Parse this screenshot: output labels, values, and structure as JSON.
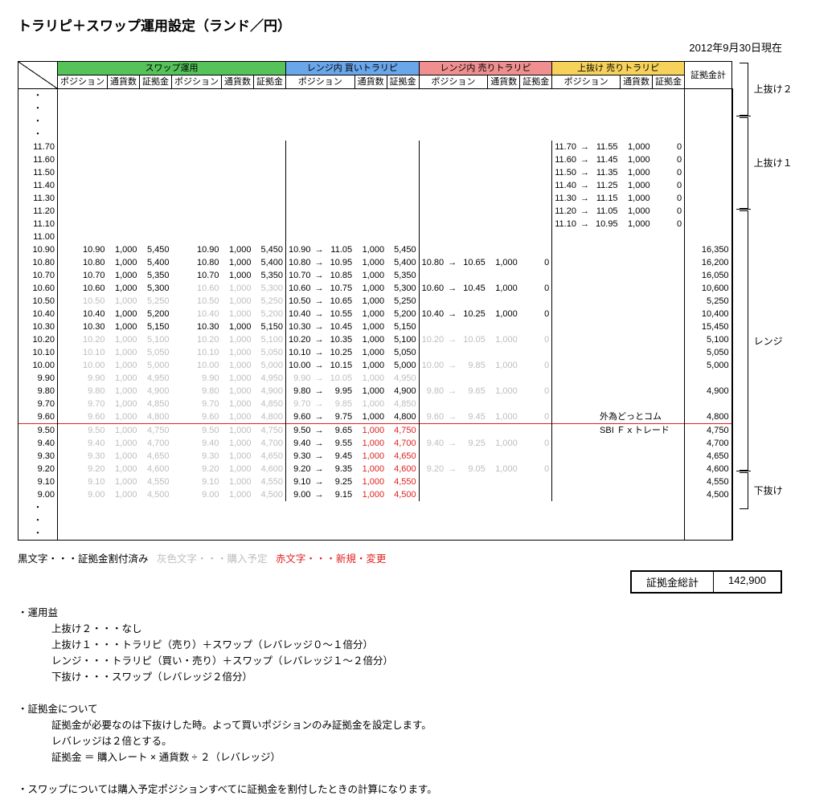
{
  "title": "トラリピ＋スワップ運用設定（ランド／円）",
  "date": "2012年9月30日現在",
  "groups": {
    "swap": {
      "title": "スワップ運用",
      "subs": [
        "ポジション",
        "通貨数",
        "証拠金",
        "ポジション",
        "通貨数",
        "証拠金"
      ]
    },
    "buy": {
      "title": "レンジ内 買いトラリピ",
      "subs": [
        "ポジション",
        "通貨数",
        "証拠金"
      ]
    },
    "sell": {
      "title": "レンジ内 売りトラリピ",
      "subs": [
        "ポジション",
        "通貨数",
        "証拠金"
      ]
    },
    "upper": {
      "title": "上抜け 売りトラリピ",
      "subs": [
        "ポジション",
        "通貨数",
        "証拠金"
      ]
    },
    "total": "証拠金計"
  },
  "note1": "外為どっとコム",
  "note2": "SBI Ｆｘトレード",
  "legend": {
    "black": "黒文字・・・証拠金割付済み",
    "gray": "灰色文字・・・購入予定",
    "red": "赤文字・・・新規・変更"
  },
  "grand": {
    "label": "証拠金総計",
    "value": "142,900"
  },
  "side": {
    "u2": "上抜け２",
    "u1": "上抜け１",
    "rng": "レンジ",
    "dn": "下抜け"
  },
  "notes": {
    "h1": "・運用益",
    "l1": "上抜け２・・・なし",
    "l2": "上抜け１・・・トラリピ（売り）＋スワップ（レバレッジ０～１倍分）",
    "l3": "レンジ・・・トラリピ（買い・売り）＋スワップ（レバレッジ１～２倍分）",
    "l4": "下抜け・・・スワップ（レバレッジ２倍分）",
    "h2": "・証拠金について",
    "l5": "証拠金が必要なのは下抜けした時。よって買いポジションのみ証拠金を設定します。",
    "l6": "レバレッジは２倍とする。",
    "l7": "証拠金 ＝ 購入レート × 通貨数 ÷ ２（レバレッジ）",
    "h3": "・スワップについては購入予定ポジションすべてに証拠金を割付したときの計算になります。"
  },
  "rows": [
    {
      "lab": "11.70",
      "u": [
        "11.70",
        "11.55",
        "1,000",
        "0"
      ]
    },
    {
      "lab": "11.60",
      "u": [
        "11.60",
        "11.45",
        "1,000",
        "0"
      ]
    },
    {
      "lab": "11.50",
      "u": [
        "11.50",
        "11.35",
        "1,000",
        "0"
      ]
    },
    {
      "lab": "11.40",
      "u": [
        "11.40",
        "11.25",
        "1,000",
        "0"
      ]
    },
    {
      "lab": "11.30",
      "u": [
        "11.30",
        "11.15",
        "1,000",
        "0"
      ]
    },
    {
      "lab": "11.20",
      "u": [
        "11.20",
        "11.05",
        "1,000",
        "0"
      ]
    },
    {
      "lab": "11.10",
      "u": [
        "11.10",
        "10.95",
        "1,000",
        "0"
      ]
    },
    {
      "lab": "11.00"
    },
    {
      "lab": "10.90",
      "s1": [
        "10.90",
        "1,000",
        "5,450"
      ],
      "s2": [
        "10.90",
        "1,000",
        "5,450"
      ],
      "b": [
        "10.90",
        "11.05",
        "1,000",
        "5,450"
      ],
      "t": "16,350"
    },
    {
      "lab": "10.80",
      "s1": [
        "10.80",
        "1,000",
        "5,400"
      ],
      "s2": [
        "10.80",
        "1,000",
        "5,400"
      ],
      "b": [
        "10.80",
        "10.95",
        "1,000",
        "5,400"
      ],
      "r": [
        "10.80",
        "10.65",
        "1,000",
        "0"
      ],
      "t": "16,200"
    },
    {
      "lab": "10.70",
      "s1": [
        "10.70",
        "1,000",
        "5,350"
      ],
      "s2": [
        "10.70",
        "1,000",
        "5,350"
      ],
      "b": [
        "10.70",
        "10.85",
        "1,000",
        "5,350"
      ],
      "t": "16,050"
    },
    {
      "lab": "10.60",
      "s1": [
        "10.60",
        "1,000",
        "5,300"
      ],
      "s2g": [
        "10.60",
        "1,000",
        "5,300"
      ],
      "b": [
        "10.60",
        "10.75",
        "1,000",
        "5,300"
      ],
      "r": [
        "10.60",
        "10.45",
        "1,000",
        "0"
      ],
      "t": "10,600"
    },
    {
      "lab": "10.50",
      "s1g": [
        "10.50",
        "1,000",
        "5,250"
      ],
      "s2g": [
        "10.50",
        "1,000",
        "5,250"
      ],
      "b": [
        "10.50",
        "10.65",
        "1,000",
        "5,250"
      ],
      "t": "5,250"
    },
    {
      "lab": "10.40",
      "s1": [
        "10.40",
        "1,000",
        "5,200"
      ],
      "s2g": [
        "10.40",
        "1,000",
        "5,200"
      ],
      "b": [
        "10.40",
        "10.55",
        "1,000",
        "5,200"
      ],
      "r": [
        "10.40",
        "10.25",
        "1,000",
        "0"
      ],
      "t": "10,400"
    },
    {
      "lab": "10.30",
      "s1": [
        "10.30",
        "1,000",
        "5,150"
      ],
      "s2": [
        "10.30",
        "1,000",
        "5,150"
      ],
      "b": [
        "10.30",
        "10.45",
        "1,000",
        "5,150"
      ],
      "t": "15,450"
    },
    {
      "lab": "10.20",
      "s1g": [
        "10.20",
        "1,000",
        "5,100"
      ],
      "s2g": [
        "10.20",
        "1,000",
        "5,100"
      ],
      "b": [
        "10.20",
        "10.35",
        "1,000",
        "5,100"
      ],
      "rg": [
        "10.20",
        "10.05",
        "1,000",
        "0"
      ],
      "t": "5,100"
    },
    {
      "lab": "10.10",
      "s1g": [
        "10.10",
        "1,000",
        "5,050"
      ],
      "s2g": [
        "10.10",
        "1,000",
        "5,050"
      ],
      "b": [
        "10.10",
        "10.25",
        "1,000",
        "5,050"
      ],
      "t": "5,050"
    },
    {
      "lab": "10.00",
      "s1g": [
        "10.00",
        "1,000",
        "5,000"
      ],
      "s2g": [
        "10.00",
        "1,000",
        "5,000"
      ],
      "b": [
        "10.00",
        "10.15",
        "1,000",
        "5,000"
      ],
      "rg": [
        "10.00",
        "9.85",
        "1,000",
        "0"
      ],
      "t": "5,000"
    },
    {
      "lab": "9.90",
      "s1g": [
        "9.90",
        "1,000",
        "4,950"
      ],
      "s2g": [
        "9.90",
        "1,000",
        "4,950"
      ],
      "bg": [
        "9.90",
        "10.05",
        "1,000",
        "4,950"
      ]
    },
    {
      "lab": "9.80",
      "s1g": [
        "9.80",
        "1,000",
        "4,900"
      ],
      "s2g": [
        "9.80",
        "1,000",
        "4,900"
      ],
      "b": [
        "9.80",
        "9.95",
        "1,000",
        "4,900"
      ],
      "rg": [
        "9.80",
        "9.65",
        "1,000",
        "0"
      ],
      "t": "4,900"
    },
    {
      "lab": "9.70",
      "s1g": [
        "9.70",
        "1,000",
        "4,850"
      ],
      "s2g": [
        "9.70",
        "1,000",
        "4,850"
      ],
      "bg": [
        "9.70",
        "9.85",
        "1,000",
        "4,850"
      ]
    },
    {
      "lab": "9.60",
      "s1g": [
        "9.60",
        "1,000",
        "4,800"
      ],
      "s2g": [
        "9.60",
        "1,000",
        "4,800"
      ],
      "b": [
        "9.60",
        "9.75",
        "1,000",
        "4,800"
      ],
      "rg": [
        "9.60",
        "9.45",
        "1,000",
        "0"
      ],
      "t": "4,800",
      "note": "note1"
    },
    {
      "lab": "9.50",
      "s1g": [
        "9.50",
        "1,000",
        "4,750"
      ],
      "s2g": [
        "9.50",
        "1,000",
        "4,750"
      ],
      "b": [
        "9.50",
        "9.65"
      ],
      "bred": [
        "1,000",
        "4,750"
      ],
      "t": "4,750",
      "note": "note2",
      "red": true
    },
    {
      "lab": "9.40",
      "s1g": [
        "9.40",
        "1,000",
        "4,700"
      ],
      "s2g": [
        "9.40",
        "1,000",
        "4,700"
      ],
      "b": [
        "9.40",
        "9.55"
      ],
      "bred": [
        "1,000",
        "4,700"
      ],
      "rg": [
        "9.40",
        "9.25",
        "1,000",
        "0"
      ],
      "t": "4,700"
    },
    {
      "lab": "9.30",
      "s1g": [
        "9.30",
        "1,000",
        "4,650"
      ],
      "s2g": [
        "9.30",
        "1,000",
        "4,650"
      ],
      "b": [
        "9.30",
        "9.45"
      ],
      "bred": [
        "1,000",
        "4,650"
      ],
      "t": "4,650"
    },
    {
      "lab": "9.20",
      "s1g": [
        "9.20",
        "1,000",
        "4,600"
      ],
      "s2g": [
        "9.20",
        "1,000",
        "4,600"
      ],
      "b": [
        "9.20",
        "9.35"
      ],
      "bred": [
        "1,000",
        "4,600"
      ],
      "rg": [
        "9.20",
        "9.05",
        "1,000",
        "0"
      ],
      "t": "4,600"
    },
    {
      "lab": "9.10",
      "s1g": [
        "9.10",
        "1,000",
        "4,550"
      ],
      "s2g": [
        "9.10",
        "1,000",
        "4,550"
      ],
      "b": [
        "9.10",
        "9.25"
      ],
      "bred": [
        "1,000",
        "4,550"
      ],
      "t": "4,550"
    },
    {
      "lab": "9.00",
      "s1g": [
        "9.00",
        "1,000",
        "4,500"
      ],
      "s2g": [
        "9.00",
        "1,000",
        "4,500"
      ],
      "b": [
        "9.00",
        "9.15"
      ],
      "bred": [
        "1,000",
        "4,500"
      ],
      "t": "4,500"
    }
  ]
}
